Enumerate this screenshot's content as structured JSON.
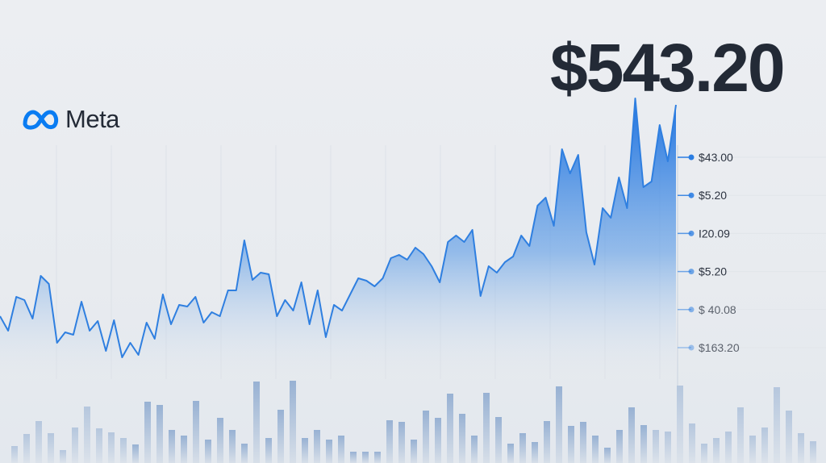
{
  "brand": {
    "name": "Meta",
    "color": "#0a7cf2"
  },
  "price": "$543.20",
  "chart_data": {
    "type": "area",
    "grid": true,
    "accent_color": "#2f7fe0",
    "y_tick_labels": [
      "$43.00",
      "$5.20",
      "I20.09",
      "$5.20",
      "$ 40.08",
      "$163.20"
    ],
    "series": [
      {
        "values": [
          78,
          60,
          102,
          98,
          75,
          128,
          118,
          45,
          58,
          55,
          96,
          60,
          72,
          35,
          73,
          27,
          45,
          30,
          70,
          50,
          105,
          68,
          92,
          90,
          102,
          70,
          83,
          78,
          110,
          110,
          172,
          123,
          132,
          130,
          78,
          98,
          85,
          120,
          68,
          110,
          52,
          92,
          85,
          105,
          125,
          122,
          115,
          125,
          150,
          154,
          148,
          163,
          155,
          140,
          120,
          170,
          178,
          170,
          185,
          103,
          140,
          132,
          145,
          152,
          178,
          165,
          215,
          225,
          190,
          285,
          255,
          278,
          182,
          142,
          212,
          200,
          250,
          212,
          348,
          238,
          245,
          315,
          270,
          340
        ]
      }
    ],
    "volume": [
      21,
      36,
      52,
      37,
      16,
      44,
      70,
      43,
      38,
      31,
      23,
      76,
      72,
      41,
      34,
      77,
      29,
      56,
      41,
      24,
      101,
      31,
      66,
      102,
      31,
      41,
      29,
      34,
      14,
      14,
      14,
      53,
      51,
      29,
      65,
      56,
      86,
      61,
      34,
      87,
      57,
      24,
      37,
      26,
      52,
      95,
      46,
      51,
      34,
      19,
      41,
      69,
      47,
      41,
      39,
      96,
      49,
      24,
      31,
      39,
      69,
      34,
      44,
      94,
      65,
      37,
      27
    ]
  }
}
